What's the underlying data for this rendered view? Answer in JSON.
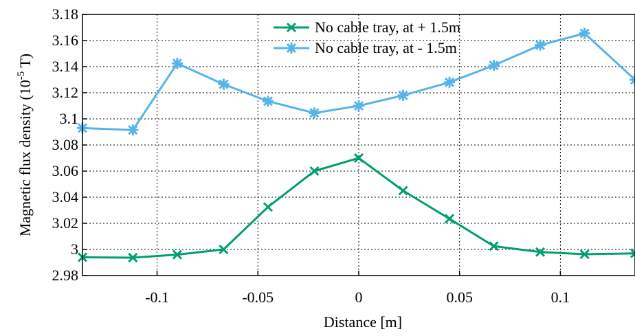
{
  "chart_data": {
    "type": "line",
    "xlabel": "Distance [m]",
    "ylabel": "Magnetic flux density (10",
    "ylabel_exp": "-5",
    "ylabel_suffix": " T)",
    "xlim": [
      -0.137,
      0.137
    ],
    "ylim": [
      2.98,
      3.18
    ],
    "xticks": [
      -0.1,
      -0.05,
      0,
      0.05,
      0.1
    ],
    "xtick_labels": [
      "-0.1",
      "-0.05",
      "0",
      "0.05",
      "0.1"
    ],
    "yticks": [
      2.98,
      3.0,
      3.02,
      3.04,
      3.06,
      3.08,
      3.1,
      3.12,
      3.14,
      3.16,
      3.18
    ],
    "ytick_labels": [
      "2.98",
      "3",
      "3.02",
      "3.04",
      "3.06",
      "3.08",
      "3.1",
      "3.12",
      "3.14",
      "3.16",
      "3.18"
    ],
    "grid": true,
    "legend_position": "top-right",
    "series": [
      {
        "name": "No cable tray, at + 1.5m",
        "color": "#009e73",
        "marker": "x",
        "x": [
          -0.137,
          -0.112,
          -0.09,
          -0.067,
          -0.045,
          -0.022,
          0.0,
          0.022,
          0.045,
          0.067,
          0.09,
          0.112,
          0.137
        ],
        "y": [
          2.994,
          2.9937,
          2.996,
          3.0,
          3.0325,
          3.06,
          3.07,
          3.045,
          3.0235,
          3.0025,
          2.998,
          2.9963,
          2.997
        ]
      },
      {
        "name": "No cable tray, at - 1.5m",
        "color": "#56b4e9",
        "marker": "asterisk",
        "x": [
          -0.137,
          -0.112,
          -0.09,
          -0.067,
          -0.045,
          -0.022,
          0.0,
          0.022,
          0.045,
          0.067,
          0.09,
          0.112,
          0.137
        ],
        "y": [
          3.093,
          3.0915,
          3.1425,
          3.1265,
          3.1135,
          3.1045,
          3.11,
          3.118,
          3.128,
          3.141,
          3.1565,
          3.1655,
          3.13
        ]
      }
    ]
  }
}
